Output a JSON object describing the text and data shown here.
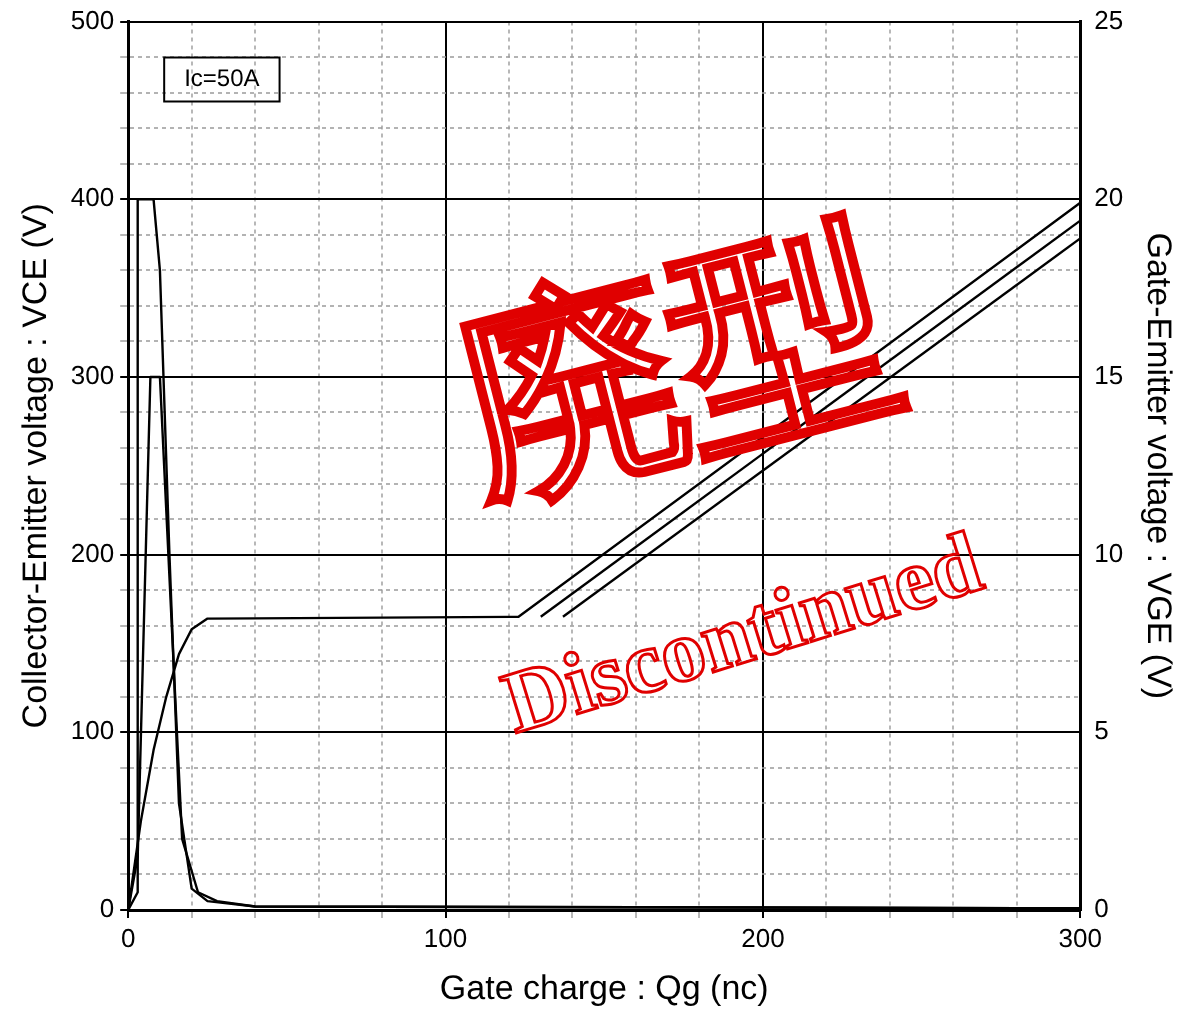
{
  "chart_data": {
    "type": "line",
    "xlabel": "Gate charge : Qg (nc)",
    "ylabel": "Collector-Emitter voltage : VCE (V)",
    "y2label": "Gate-Emitter voltage : VGE (V)",
    "annotations": [
      "Ic=50A",
      "廃型",
      "Discontinued"
    ],
    "xlim": [
      0,
      300
    ],
    "xticks": [
      0,
      {
        "value": 20,
        "label": null
      },
      {
        "value": 40,
        "label": null
      },
      {
        "value": 60,
        "label": null
      },
      {
        "value": 80,
        "label": null
      },
      100,
      {
        "value": 120,
        "label": null
      },
      {
        "value": 140,
        "label": null
      },
      {
        "value": 160,
        "label": null
      },
      {
        "value": 180,
        "label": null
      },
      200,
      {
        "value": 220,
        "label": null
      },
      {
        "value": 240,
        "label": null
      },
      {
        "value": 260,
        "label": null
      },
      {
        "value": 280,
        "label": null
      },
      300
    ],
    "ylim": [
      0,
      500
    ],
    "yticks": [
      0,
      {
        "value": 20,
        "label": null
      },
      {
        "value": 40,
        "label": null
      },
      {
        "value": 60,
        "label": null
      },
      {
        "value": 80,
        "label": null
      },
      100,
      {
        "value": 120,
        "label": null
      },
      {
        "value": 140,
        "label": null
      },
      {
        "value": 160,
        "label": null
      },
      {
        "value": 180,
        "label": null
      },
      200,
      {
        "value": 220,
        "label": null
      },
      {
        "value": 240,
        "label": null
      },
      {
        "value": 260,
        "label": null
      },
      {
        "value": 280,
        "label": null
      },
      300,
      {
        "value": 320,
        "label": null
      },
      {
        "value": 340,
        "label": null
      },
      {
        "value": 360,
        "label": null
      },
      {
        "value": 380,
        "label": null
      },
      400,
      {
        "value": 420,
        "label": null
      },
      {
        "value": 440,
        "label": null
      },
      {
        "value": 460,
        "label": null
      },
      {
        "value": 480,
        "label": null
      },
      500
    ],
    "y2lim": [
      0,
      25
    ],
    "y2ticks": [
      0,
      5,
      10,
      15,
      20,
      25
    ],
    "grid": true,
    "legend": false,
    "marker": "none",
    "line_style": "solid",
    "series": [
      {
        "color": "#000000",
        "x": [
          0,
          3,
          3,
          8,
          10,
          13,
          16,
          20,
          25,
          40,
          300
        ],
        "values": [
          0,
          10,
          400,
          400,
          360,
          200,
          60,
          12,
          5,
          2,
          1
        ]
      },
      {
        "color": "#000000",
        "x": [
          0,
          3,
          7,
          10,
          14,
          17,
          22,
          28,
          40,
          300
        ],
        "values": [
          0,
          30,
          300,
          300,
          150,
          40,
          10,
          5,
          2,
          1
        ]
      },
      {
        "color": "#000000",
        "axis": "y2",
        "x": [
          0,
          4,
          8,
          12,
          16,
          20,
          25,
          123,
          300
        ],
        "values": [
          0,
          2.5,
          4.5,
          6,
          7.2,
          7.9,
          8.2,
          8.25,
          19.9
        ]
      },
      {
        "color": "#000000",
        "axis": "y2",
        "x": [
          130,
          300
        ],
        "values": [
          8.25,
          19.4
        ]
      },
      {
        "color": "#000000",
        "axis": "y2",
        "x": [
          137,
          300
        ],
        "values": [
          8.25,
          18.9
        ]
      }
    ]
  }
}
